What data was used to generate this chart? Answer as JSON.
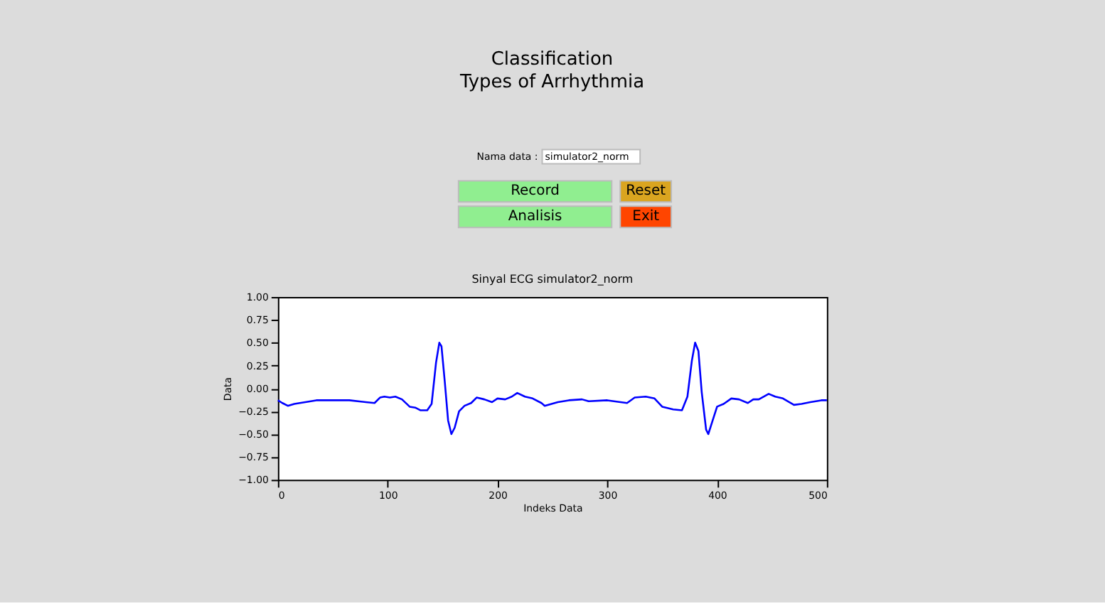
{
  "chart_data": {
    "type": "line",
    "title": "Sinyal ECG simulator2_norm",
    "xlabel": "Indeks Data",
    "ylabel": "Data",
    "annotations": [
      "Classification",
      "Types of Arrhythmia",
      "Nama data :",
      "simulator2_norm",
      "Record",
      "Reset",
      "Analisis",
      "Exit"
    ],
    "x": [
      0,
      4,
      9,
      15,
      25,
      35,
      50,
      65,
      80,
      88,
      93,
      97,
      102,
      107,
      113,
      120,
      125,
      130,
      136,
      140,
      144,
      147,
      149,
      152,
      155,
      158,
      161,
      165,
      170,
      176,
      181,
      188,
      195,
      200,
      207,
      213,
      218,
      225,
      232,
      240,
      243,
      255,
      265,
      277,
      283,
      300,
      318,
      325,
      335,
      343,
      350,
      360,
      368,
      373,
      377,
      380,
      383,
      386,
      390,
      392,
      396,
      400,
      406,
      413,
      420,
      428,
      433,
      438,
      447,
      453,
      460,
      470,
      477,
      485,
      495,
      500
    ],
    "series": [
      {
        "color": "#0000ff",
        "values": [
          -0.13,
          -0.16,
          -0.19,
          -0.17,
          -0.15,
          -0.13,
          -0.13,
          -0.13,
          -0.15,
          -0.16,
          -0.1,
          -0.09,
          -0.1,
          -0.09,
          -0.12,
          -0.2,
          -0.21,
          -0.24,
          -0.24,
          -0.17,
          0.28,
          0.5,
          0.46,
          0.07,
          -0.35,
          -0.5,
          -0.43,
          -0.25,
          -0.19,
          -0.16,
          -0.1,
          -0.12,
          -0.15,
          -0.11,
          -0.12,
          -0.09,
          -0.05,
          -0.09,
          -0.11,
          -0.16,
          -0.19,
          -0.15,
          -0.13,
          -0.12,
          -0.14,
          -0.13,
          -0.16,
          -0.1,
          -0.09,
          -0.11,
          -0.2,
          -0.23,
          -0.24,
          -0.09,
          0.3,
          0.5,
          0.41,
          -0.04,
          -0.45,
          -0.5,
          -0.35,
          -0.2,
          -0.17,
          -0.11,
          -0.12,
          -0.16,
          -0.12,
          -0.12,
          -0.06,
          -0.09,
          -0.11,
          -0.18,
          -0.17,
          -0.15,
          -0.13,
          -0.13
        ]
      }
    ],
    "xlim": [
      0,
      500
    ],
    "xticks": [
      0,
      100,
      200,
      300,
      400,
      500
    ],
    "ylim": [
      -1.0,
      1.0
    ],
    "yticks": [
      {
        "value": -1.0,
        "label": "−1.00"
      },
      {
        "value": -0.75,
        "label": "−0.75"
      },
      {
        "value": -0.5,
        "label": "−0.50"
      },
      {
        "value": -0.25,
        "label": "−0.25"
      },
      {
        "value": 0.0,
        "label": "0.00"
      },
      {
        "value": 0.25,
        "label": "0.25"
      },
      {
        "value": 0.5,
        "label": "0.50"
      },
      {
        "value": 0.75,
        "label": "0.75"
      },
      {
        "value": 1.0,
        "label": "1.00"
      }
    ],
    "grid": false,
    "legend": false,
    "marker": "none",
    "line_style": "solid"
  }
}
